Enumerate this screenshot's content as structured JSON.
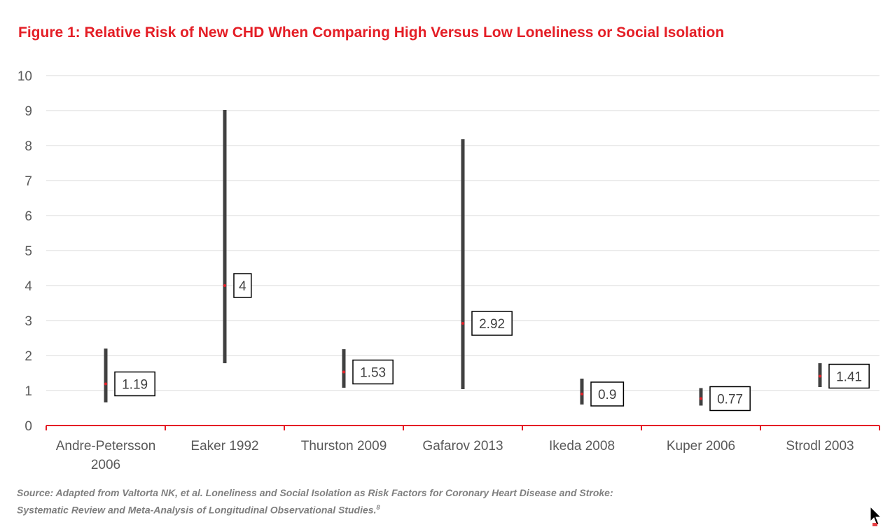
{
  "chart_data": {
    "type": "range",
    "title": "Figure 1: Relative Risk of New CHD When Comparing High Versus Low Loneliness or Social Isolation",
    "xlabel": "",
    "ylabel": "",
    "ylim": [
      0,
      10
    ],
    "yticks": [
      "0",
      "1",
      "2",
      "3",
      "4",
      "5",
      "6",
      "7",
      "8",
      "9",
      "10"
    ],
    "grid": true,
    "categories": [
      [
        "Andre-Petersson",
        "2006"
      ],
      [
        "Eaker 1992"
      ],
      [
        "Thurston 2009"
      ],
      [
        "Gafarov 2013"
      ],
      [
        "Ikeda 2008"
      ],
      [
        "Kuper 2006"
      ],
      [
        "Strodl 2003"
      ]
    ],
    "point": [
      1.19,
      4,
      1.53,
      2.92,
      0.9,
      0.77,
      1.41
    ],
    "point_labels": [
      "1.19",
      "4",
      "1.53",
      "2.92",
      "0.9",
      "0.77",
      "1.41"
    ],
    "low": [
      0.66,
      1.78,
      1.08,
      1.04,
      0.6,
      0.57,
      1.1
    ],
    "high": [
      2.2,
      9.02,
      2.18,
      8.18,
      1.34,
      1.07,
      1.78
    ],
    "colors": {
      "range": "#404040",
      "point": "#e41e26",
      "axis": "#e41e26",
      "grid": "#d9d9d9"
    }
  },
  "source_note": "Source: Adapted from Valtorta NK, et al. Loneliness and Social Isolation as Risk Factors for Coronary Heart Disease and Stroke: Systematic Review and Meta-Analysis of Longitudinal Observational Studies.",
  "source_ref": "8",
  "cursor_icon": "mouse-pointer-icon"
}
